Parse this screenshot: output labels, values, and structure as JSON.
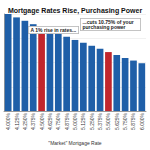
{
  "chart_data": {
    "type": "bar",
    "title": "Mortgage Rates Rise, Purchasing Power",
    "x_label": "\"Market\" Mortgage Rate",
    "categories": [
      "4.000%",
      "4.125%",
      "4.250%",
      "4.375%",
      "4.500%",
      "4.625%",
      "4.750%",
      "4.875%",
      "5.000%",
      "5.125%",
      "5.250%",
      "5.375%",
      "5.500%",
      "5.625%",
      "5.750%",
      "5.875%",
      "6.000%"
    ],
    "values": [
      100,
      98.6,
      97.2,
      95.8,
      94.5,
      93.2,
      91.9,
      90.6,
      89.3,
      88.1,
      86.9,
      85.7,
      84.3,
      83.1,
      81.9,
      80.8,
      79.7
    ],
    "colors": [
      "#1f5fa8",
      "#1f5fa8",
      "#1f5fa8",
      "#1f5fa8",
      "#c0262d",
      "#1f5fa8",
      "#1f5fa8",
      "#1f5fa8",
      "#1f5fa8",
      "#1f5fa8",
      "#1f5fa8",
      "#1f5fa8",
      "#c0262d",
      "#1f5fa8",
      "#1f5fa8",
      "#1f5fa8",
      "#1f5fa8"
    ],
    "annotations": [
      "A 1% rise in rates...",
      "...cuts 10.75% of your purchasing power"
    ],
    "ylim": [
      60,
      100
    ],
    "yticks": [
      60,
      70,
      80,
      90,
      100
    ],
    "grid": true,
    "tick_labels": "x"
  }
}
